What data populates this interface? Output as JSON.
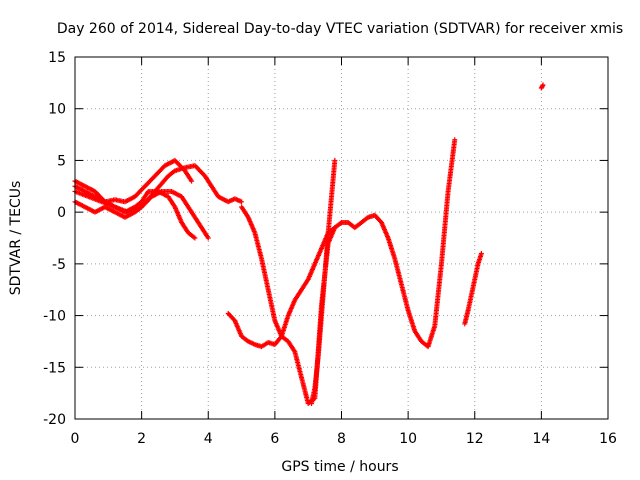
{
  "chart_data": {
    "type": "scatter",
    "title": "Day 260 of 2014, Sidereal Day-to-day VTEC variation (SDTVAR) for receiver xmis",
    "xlabel": "GPS time / hours",
    "ylabel": "SDTVAR / TECUs",
    "xlim": [
      0,
      16
    ],
    "ylim": [
      -20,
      15
    ],
    "xticks": [
      "0",
      "2",
      "4",
      "6",
      "8",
      "10",
      "12",
      "14",
      "16"
    ],
    "yticks": [
      "15",
      "10",
      "5",
      "0",
      "-5",
      "-10",
      "-15",
      "-20"
    ],
    "grid": true,
    "marker": "+",
    "color": "#ff0000",
    "series": [
      {
        "x": [
          0.0,
          0.3,
          0.6,
          0.9,
          1.2,
          1.5,
          1.8,
          2.1,
          2.4,
          2.7,
          3.0,
          3.3,
          3.5
        ],
        "y": [
          2.5,
          2.0,
          1.5,
          1.0,
          1.2,
          1.0,
          1.5,
          2.5,
          3.5,
          4.5,
          5.0,
          4.0,
          3.0
        ]
      },
      {
        "x": [
          0.0,
          0.3,
          0.6,
          0.9,
          1.2,
          1.5,
          1.8,
          2.0,
          2.2,
          2.5,
          2.8,
          3.0,
          3.2,
          3.4,
          3.6
        ],
        "y": [
          3.0,
          2.5,
          2.0,
          1.0,
          0.5,
          0.0,
          0.5,
          1.0,
          2.0,
          2.0,
          1.5,
          0.5,
          -1.0,
          -2.0,
          -2.5
        ]
      },
      {
        "x": [
          0.0,
          0.3,
          0.6,
          0.9,
          1.2,
          1.5,
          1.8,
          2.0,
          2.3,
          2.6,
          2.9,
          3.2,
          3.5,
          3.8,
          4.0
        ],
        "y": [
          1.0,
          0.5,
          0.0,
          0.5,
          0.0,
          -0.5,
          0.0,
          0.5,
          1.5,
          2.0,
          2.0,
          1.5,
          0.0,
          -1.5,
          -2.5
        ]
      },
      {
        "x": [
          0.0,
          0.4,
          0.8,
          1.2,
          1.6,
          2.0,
          2.4,
          2.8,
          3.0,
          3.3,
          3.6,
          3.9,
          4.1,
          4.3,
          4.6,
          4.8,
          5.0
        ],
        "y": [
          2.0,
          1.5,
          1.0,
          0.5,
          0.0,
          0.5,
          2.0,
          3.5,
          4.0,
          4.3,
          4.5,
          3.5,
          2.5,
          1.5,
          1.0,
          1.3,
          1.0
        ]
      },
      {
        "x": [
          5.0,
          5.2,
          5.4,
          5.6,
          5.8,
          6.0,
          6.2,
          6.4,
          6.6,
          6.8,
          7.0,
          7.2,
          7.4,
          7.6,
          7.8,
          8.0,
          8.2,
          8.4,
          8.6,
          8.8,
          9.0,
          9.2,
          9.4,
          9.6,
          9.8,
          10.0,
          10.2,
          10.4,
          10.6,
          10.8,
          11.0,
          11.2,
          11.4
        ],
        "y": [
          0.5,
          -0.5,
          -2.0,
          -4.5,
          -7.5,
          -10.5,
          -12.0,
          -12.5,
          -13.5,
          -16.0,
          -18.5,
          -18.0,
          -9.0,
          -3.0,
          -1.5,
          -1.0,
          -1.0,
          -1.5,
          -1.0,
          -0.5,
          -0.3,
          -1.0,
          -2.5,
          -4.5,
          -7.0,
          -9.5,
          -11.5,
          -12.5,
          -13.0,
          -11.0,
          -5.0,
          2.0,
          7.0
        ]
      },
      {
        "x": [
          4.6,
          4.8,
          5.0,
          5.2,
          5.4,
          5.6,
          5.8,
          6.0,
          6.2,
          6.4,
          6.6,
          6.8,
          7.0,
          7.2,
          7.4,
          7.6,
          7.8
        ],
        "y": [
          -9.8,
          -10.5,
          -12.0,
          -12.5,
          -12.8,
          -13.0,
          -12.6,
          -12.8,
          -12.0,
          -10.0,
          -8.5,
          -7.5,
          -6.5,
          -5.0,
          -3.5,
          -2.0,
          -1.5
        ]
      },
      {
        "x": [
          7.1,
          7.2,
          7.3,
          7.4,
          7.5,
          7.6,
          7.7,
          7.8
        ],
        "y": [
          -18.5,
          -17.0,
          -14.0,
          -10.0,
          -6.0,
          -2.0,
          1.5,
          5.0
        ]
      },
      {
        "x": [
          11.7,
          11.8,
          11.9,
          12.0,
          12.1,
          12.2
        ],
        "y": [
          -10.8,
          -9.5,
          -8.0,
          -6.5,
          -5.0,
          -4.0
        ]
      },
      {
        "x": [
          14.0,
          14.05
        ],
        "y": [
          12.0,
          12.3
        ]
      }
    ]
  }
}
